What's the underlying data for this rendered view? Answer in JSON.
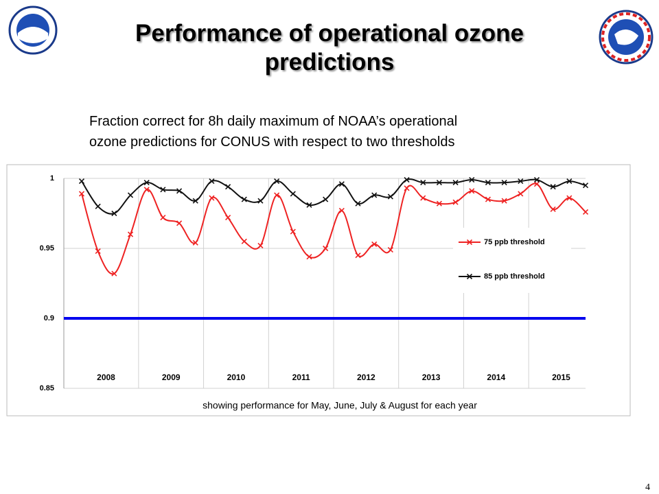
{
  "title": "Performance of operational ozone predictions",
  "subtitle_lines": [
    "Fraction correct for 8h daily maximum of NOAA’s operational",
    "ozone predictions for CONUS with respect to two thresholds"
  ],
  "page_number": "4",
  "chart_data": {
    "type": "line",
    "categories": [
      null,
      null,
      null,
      null,
      null,
      null,
      null,
      null,
      null,
      null,
      null,
      null,
      null,
      null,
      null,
      null,
      null,
      null,
      null,
      null,
      null,
      null,
      null,
      null,
      null,
      null,
      null,
      null,
      null,
      null,
      null,
      null
    ],
    "year_groups": [
      "2008",
      "2009",
      "2010",
      "2011",
      "2012",
      "2013",
      "2014",
      "2015"
    ],
    "series": [
      {
        "name": "75 ppb threshold",
        "color": "#ee2222",
        "values": [
          0.989,
          0.948,
          0.932,
          0.96,
          0.992,
          0.972,
          0.968,
          0.954,
          0.986,
          0.972,
          0.955,
          0.952,
          0.988,
          0.962,
          0.944,
          0.95,
          0.977,
          0.945,
          0.953,
          0.949,
          0.993,
          0.986,
          0.982,
          0.983,
          0.991,
          0.985,
          0.984,
          0.989,
          0.996,
          0.978,
          0.986,
          0.976
        ]
      },
      {
        "name": "85 ppb threshold",
        "color": "#111111",
        "values": [
          0.998,
          0.98,
          0.975,
          0.988,
          0.997,
          0.992,
          0.991,
          0.984,
          0.998,
          0.994,
          0.985,
          0.984,
          0.998,
          0.989,
          0.981,
          0.985,
          0.996,
          0.982,
          0.988,
          0.987,
          0.999,
          0.997,
          0.997,
          0.997,
          0.999,
          0.997,
          0.997,
          0.998,
          0.999,
          0.994,
          0.998,
          0.995
        ]
      }
    ],
    "reference_line": {
      "value": 0.9,
      "color": "#0000ee"
    },
    "ylim": [
      0.85,
      1
    ],
    "yticks": [
      0.85,
      0.9,
      0.95,
      1
    ],
    "grid": true,
    "caption": "showing performance for May, June, July & August for each year"
  }
}
